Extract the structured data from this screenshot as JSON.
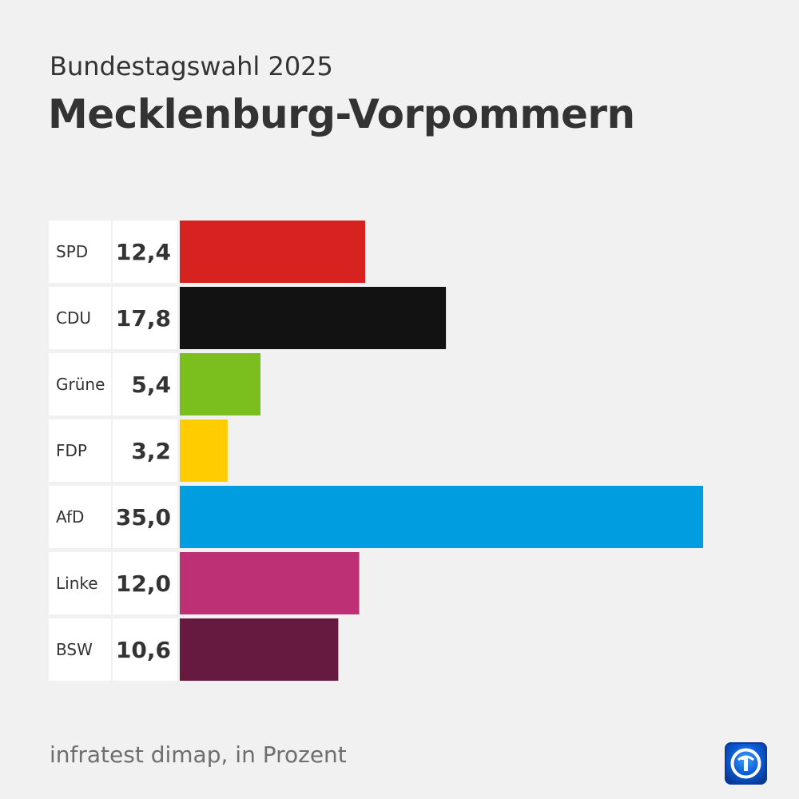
{
  "header": {
    "subtitle": "Bundestagswahl 2025",
    "title": "Mecklenburg-Vorpommern"
  },
  "chart_data": {
    "type": "bar",
    "orientation": "horizontal",
    "categories": [
      "SPD",
      "CDU",
      "Grüne",
      "FDP",
      "AfD",
      "Linke",
      "BSW"
    ],
    "values": [
      12.4,
      17.8,
      5.4,
      3.2,
      35.0,
      12.0,
      10.6
    ],
    "value_labels": [
      "12,4",
      "17,8",
      "5,4",
      "3,2",
      "35,0",
      "12,0",
      "10,6"
    ],
    "colors": [
      "#d7221f",
      "#121212",
      "#7bbf1e",
      "#ffcc00",
      "#009ee0",
      "#be3075",
      "#661a40"
    ],
    "title": "Mecklenburg-Vorpommern",
    "subtitle": "Bundestagswahl 2025",
    "xlabel": "",
    "ylabel": "",
    "xlim": [
      0,
      35
    ],
    "grid": false,
    "legend": "none"
  },
  "footer": {
    "source": "infratest dimap, in Prozent",
    "logo_icon": "ard-logo-icon"
  }
}
